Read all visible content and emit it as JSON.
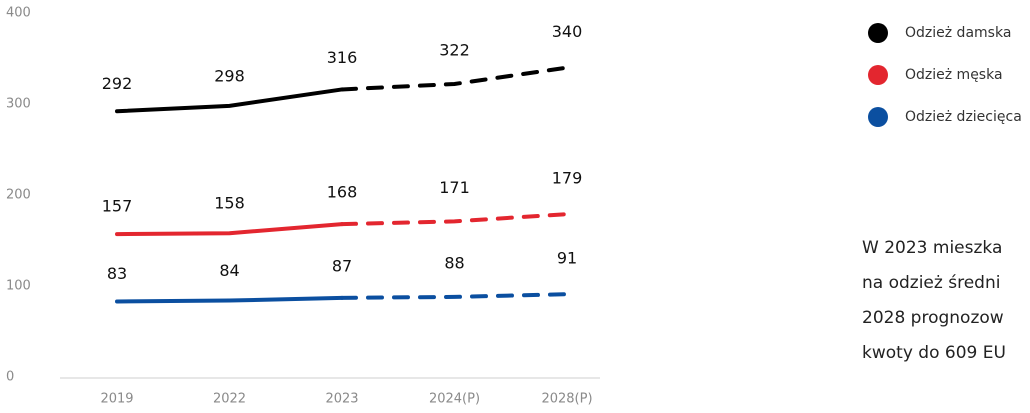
{
  "chart_data": {
    "type": "line",
    "categories": [
      "2019",
      "2022",
      "2023",
      "2024(P)",
      "2028(P)"
    ],
    "series": [
      {
        "name": "Odzież damska",
        "color": "#000000",
        "values": [
          292,
          298,
          316,
          322,
          340
        ]
      },
      {
        "name": "Odzież męska",
        "color": "#e3262f",
        "values": [
          157,
          158,
          168,
          171,
          179
        ]
      },
      {
        "name": "Odzież dziecięca",
        "color": "#0b4fa0",
        "values": [
          83,
          84,
          87,
          88,
          91
        ]
      }
    ],
    "dashed_from": 2,
    "ylim": [
      0,
      400
    ],
    "yticks": [
      0,
      100,
      200,
      300,
      400
    ],
    "legend": "top-right",
    "annotation": [
      "W 2023 mieszka",
      "na odzież średni",
      "2028 prognozow",
      "kwoty do 609 EU"
    ]
  }
}
